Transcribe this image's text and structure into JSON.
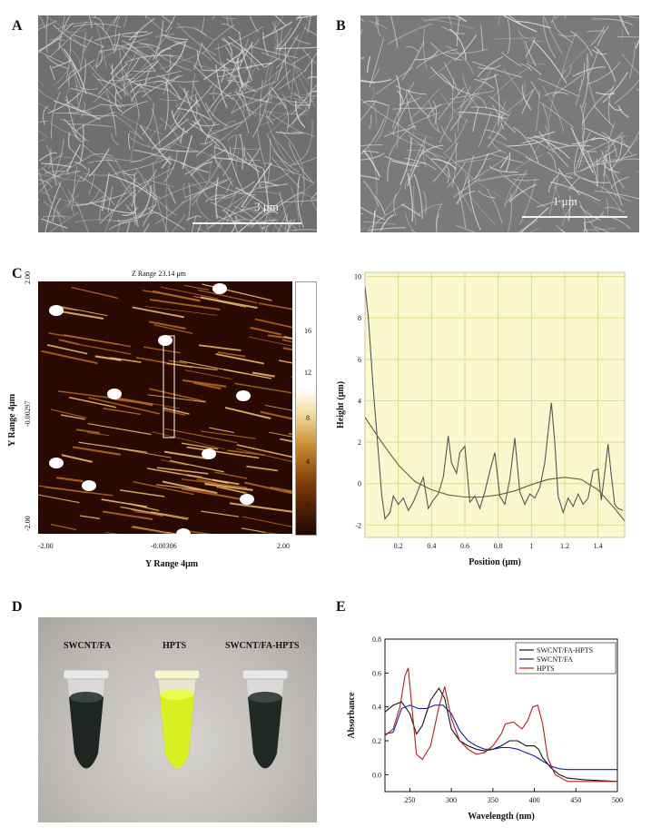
{
  "panels": {
    "A": {
      "letter": "A",
      "scalebar": "3 μm"
    },
    "B": {
      "letter": "B",
      "scalebar": "1 μm"
    },
    "C": {
      "letter": "C",
      "afm": {
        "title": "Z Range 23.14 μm",
        "ylabel": "Y Range 4μm",
        "xlabel": "Y Range 4μm",
        "y_ticks": [
          "2.00",
          "-0.00297",
          "-2.00"
        ],
        "x_ticks": [
          "-2.00",
          "-0.00306",
          "2.00"
        ],
        "colorbar_ticks": [
          "16",
          "12",
          "8",
          "4",
          "0"
        ]
      }
    },
    "D": {
      "letter": "D",
      "tube_labels": [
        "SWCNT/FA",
        "HPTS",
        "SWCNT/FA-HPTS"
      ]
    },
    "E": {
      "letter": "E"
    }
  },
  "chart_data": [
    {
      "id": "height-profile",
      "type": "line",
      "xlabel": "Position (μm)",
      "ylabel": "Height (μm)",
      "xlim": [
        0.0,
        1.56
      ],
      "ylim": [
        -2.6,
        10.2
      ],
      "x_ticks": [
        0.2,
        0.4,
        0.6,
        0.8,
        1.0,
        1.2,
        1.4
      ],
      "x_tick_labels": [
        "0.2",
        "0.4",
        "0.6",
        "0.8",
        "1",
        "1.2",
        "1.4"
      ],
      "y_ticks": [
        -2,
        0,
        2,
        4,
        6,
        8,
        10
      ],
      "grid": true,
      "series": [
        {
          "name": "",
          "color": "#555555",
          "x": [
            0.0,
            0.02,
            0.05,
            0.08,
            0.1,
            0.12,
            0.15,
            0.17,
            0.2,
            0.23,
            0.26,
            0.29,
            0.32,
            0.35,
            0.38,
            0.41,
            0.44,
            0.47,
            0.5,
            0.52,
            0.55,
            0.57,
            0.6,
            0.63,
            0.66,
            0.69,
            0.72,
            0.75,
            0.78,
            0.81,
            0.84,
            0.87,
            0.9,
            0.93,
            0.96,
            0.99,
            1.02,
            1.05,
            1.08,
            1.1,
            1.12,
            1.14,
            1.16,
            1.19,
            1.22,
            1.25,
            1.28,
            1.31,
            1.34,
            1.37,
            1.4,
            1.42,
            1.44,
            1.46,
            1.48,
            1.5,
            1.52,
            1.55
          ],
          "y": [
            9.5,
            8.0,
            4.5,
            1.5,
            -0.5,
            -1.7,
            -1.4,
            -0.6,
            -1.0,
            -0.7,
            -1.3,
            -0.9,
            -0.3,
            0.3,
            -1.2,
            -0.8,
            -0.5,
            0.3,
            2.3,
            1.0,
            0.5,
            1.5,
            1.8,
            -0.9,
            -0.6,
            -1.2,
            -0.4,
            0.6,
            1.5,
            -0.6,
            -1.0,
            0.2,
            2.2,
            -0.4,
            -1.0,
            -0.5,
            -0.7,
            -0.2,
            1.0,
            2.5,
            3.9,
            2.0,
            -0.6,
            -1.4,
            -0.7,
            -1.1,
            -0.5,
            -1.0,
            -0.7,
            0.6,
            0.7,
            -0.8,
            0.5,
            1.9,
            0.4,
            -1.0,
            -1.2,
            -1.3
          ]
        },
        {
          "name": "",
          "color": "#6b5a3a",
          "x": [
            0.0,
            0.1,
            0.2,
            0.3,
            0.4,
            0.5,
            0.6,
            0.7,
            0.8,
            0.9,
            1.0,
            1.1,
            1.2,
            1.3,
            1.4,
            1.5,
            1.56
          ],
          "y": [
            3.2,
            2.0,
            0.9,
            0.1,
            -0.3,
            -0.55,
            -0.65,
            -0.65,
            -0.55,
            -0.35,
            -0.05,
            0.2,
            0.3,
            0.2,
            -0.3,
            -1.2,
            -1.8
          ]
        }
      ]
    },
    {
      "id": "absorbance-spectra",
      "type": "line",
      "xlabel": "Wavelength (nm)",
      "ylabel": "Absorbance",
      "xlim": [
        220,
        500
      ],
      "ylim": [
        -0.1,
        0.8
      ],
      "x_ticks": [
        250,
        300,
        350,
        400,
        450,
        500
      ],
      "y_ticks": [
        0.0,
        0.2,
        0.4,
        0.6,
        0.8
      ],
      "y_tick_labels": [
        "0.0",
        "0.2",
        "0.4",
        "0.6",
        "0.8"
      ],
      "legend": "top-right",
      "grid": false,
      "series": [
        {
          "name": "SWCNT/FA-HPTS",
          "color": "#111111",
          "x": [
            220,
            230,
            240,
            250,
            258,
            265,
            275,
            285,
            292,
            300,
            310,
            320,
            330,
            340,
            350,
            360,
            370,
            380,
            390,
            400,
            405,
            410,
            420,
            430,
            440,
            460,
            480,
            500
          ],
          "y": [
            0.37,
            0.41,
            0.43,
            0.36,
            0.24,
            0.29,
            0.44,
            0.51,
            0.45,
            0.27,
            0.2,
            0.17,
            0.15,
            0.14,
            0.15,
            0.17,
            0.2,
            0.2,
            0.17,
            0.17,
            0.15,
            0.1,
            0.04,
            0.0,
            -0.02,
            -0.03,
            -0.035,
            -0.04
          ]
        },
        {
          "name": "SWCNT/FA",
          "color": "#1a1aa0",
          "x": [
            220,
            230,
            240,
            250,
            260,
            270,
            280,
            290,
            300,
            310,
            320,
            330,
            340,
            350,
            360,
            370,
            380,
            390,
            400,
            410,
            420,
            430,
            440,
            460,
            480,
            500
          ],
          "y": [
            0.24,
            0.25,
            0.39,
            0.41,
            0.39,
            0.39,
            0.41,
            0.41,
            0.36,
            0.26,
            0.2,
            0.17,
            0.15,
            0.15,
            0.16,
            0.16,
            0.15,
            0.13,
            0.11,
            0.08,
            0.05,
            0.035,
            0.03,
            0.03,
            0.03,
            0.03
          ]
        },
        {
          "name": "HPTS",
          "color": "#b02020",
          "x": [
            220,
            230,
            238,
            244,
            248,
            252,
            258,
            265,
            275,
            285,
            292,
            300,
            310,
            320,
            330,
            340,
            350,
            360,
            365,
            375,
            385,
            392,
            398,
            404,
            410,
            416,
            425,
            440,
            460,
            480,
            500
          ],
          "y": [
            0.23,
            0.27,
            0.4,
            0.58,
            0.63,
            0.42,
            0.12,
            0.09,
            0.17,
            0.4,
            0.52,
            0.33,
            0.2,
            0.15,
            0.12,
            0.13,
            0.17,
            0.24,
            0.3,
            0.31,
            0.27,
            0.32,
            0.4,
            0.41,
            0.3,
            0.1,
            0.0,
            -0.04,
            -0.04,
            -0.04,
            -0.04
          ]
        }
      ]
    }
  ]
}
